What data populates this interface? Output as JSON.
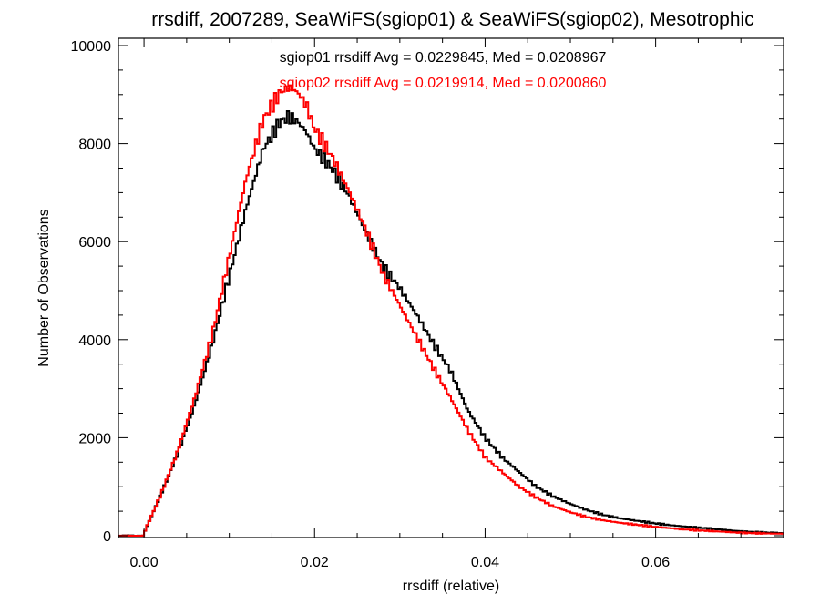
{
  "chart_data": {
    "type": "line",
    "title": "rrsdiff, 2007289, SeaWiFS(sgiop01) & SeaWiFS(sgiop02), Mesotrophic",
    "xlabel": "rrsdiff (relative)",
    "ylabel": "Number of Observations",
    "xlim": [
      -0.003,
      0.075
    ],
    "ylim": [
      0,
      10000
    ],
    "x_ticks": [
      "0.00",
      "0.02",
      "0.04",
      "0.06"
    ],
    "y_ticks": [
      "0",
      "2000",
      "4000",
      "6000",
      "8000",
      "10000"
    ],
    "grid": false,
    "annotations": [
      {
        "text": "sgiop01 rrsdiff Avg = 0.0229845, Med = 0.0208967",
        "color": "#000000"
      },
      {
        "text": "sgiop02 rrsdiff Avg = 0.0219914, Med = 0.0200860",
        "color": "#ff0000"
      }
    ],
    "series": [
      {
        "name": "sgiop01",
        "color": "#000000",
        "x": [
          -0.003,
          0.0,
          0.002,
          0.004,
          0.006,
          0.008,
          0.01,
          0.012,
          0.014,
          0.016,
          0.017,
          0.018,
          0.019,
          0.02,
          0.022,
          0.024,
          0.026,
          0.028,
          0.03,
          0.032,
          0.034,
          0.036,
          0.038,
          0.04,
          0.042,
          0.044,
          0.046,
          0.048,
          0.05,
          0.052,
          0.054,
          0.056,
          0.058,
          0.06,
          0.062,
          0.064,
          0.066,
          0.068,
          0.07,
          0.072,
          0.075
        ],
        "y": [
          0,
          50,
          850,
          1700,
          2700,
          3900,
          5300,
          6700,
          7900,
          8450,
          8550,
          8450,
          8250,
          7900,
          7500,
          6950,
          6200,
          5500,
          5050,
          4500,
          3900,
          3350,
          2550,
          2000,
          1600,
          1300,
          1000,
          800,
          650,
          520,
          420,
          350,
          300,
          250,
          210,
          180,
          150,
          120,
          90,
          70,
          50
        ]
      },
      {
        "name": "sgiop02",
        "color": "#ff0000",
        "x": [
          -0.003,
          0.0,
          0.002,
          0.004,
          0.006,
          0.008,
          0.01,
          0.012,
          0.014,
          0.016,
          0.017,
          0.018,
          0.019,
          0.02,
          0.022,
          0.024,
          0.026,
          0.028,
          0.03,
          0.032,
          0.034,
          0.036,
          0.038,
          0.04,
          0.042,
          0.044,
          0.046,
          0.048,
          0.05,
          0.052,
          0.054,
          0.056,
          0.058,
          0.06,
          0.062,
          0.064,
          0.066,
          0.068,
          0.07,
          0.072,
          0.075
        ],
        "y": [
          0,
          60,
          850,
          1750,
          2850,
          4100,
          5700,
          7300,
          8500,
          9050,
          9150,
          9050,
          8800,
          8300,
          7750,
          7050,
          6250,
          5350,
          4700,
          4050,
          3400,
          2800,
          2150,
          1600,
          1300,
          1000,
          780,
          600,
          480,
          380,
          310,
          260,
          220,
          180,
          150,
          120,
          100,
          80,
          60,
          50,
          40
        ]
      }
    ]
  }
}
